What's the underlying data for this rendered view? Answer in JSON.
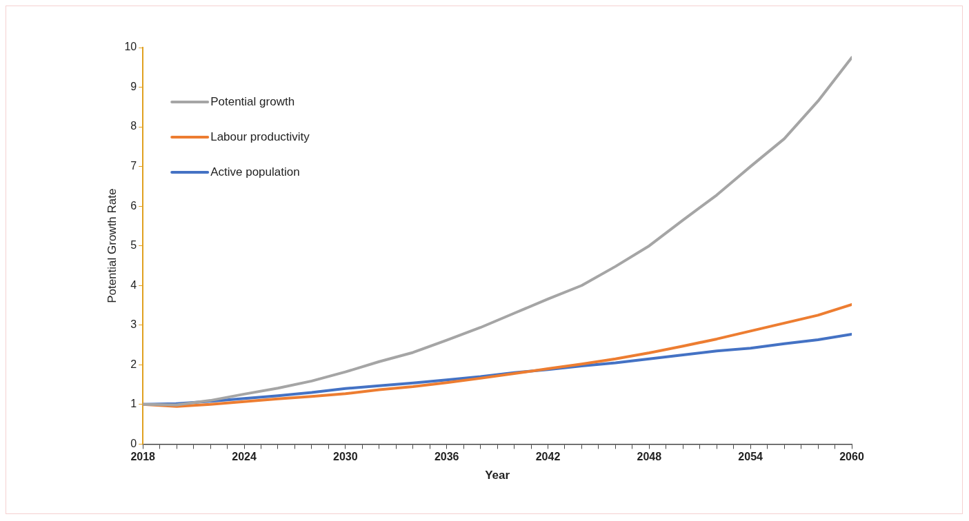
{
  "chart_data": {
    "type": "line",
    "xlabel": "Year",
    "ylabel": "Potential Growth Rate",
    "x": [
      2018,
      2020,
      2022,
      2024,
      2026,
      2028,
      2030,
      2032,
      2034,
      2036,
      2038,
      2040,
      2042,
      2044,
      2046,
      2048,
      2050,
      2052,
      2054,
      2056,
      2058,
      2060
    ],
    "series": [
      {
        "name": "Potential growth",
        "color": "#a5a5a5",
        "values": [
          1.0,
          0.99,
          1.1,
          1.26,
          1.41,
          1.59,
          1.82,
          2.08,
          2.31,
          2.62,
          2.94,
          3.3,
          3.66,
          4.0,
          4.48,
          5.0,
          5.65,
          6.28,
          7.0,
          7.7,
          8.65,
          9.75
        ]
      },
      {
        "name": "Labour productivity",
        "color": "#ed7d31",
        "values": [
          1.0,
          0.95,
          1.0,
          1.07,
          1.14,
          1.2,
          1.27,
          1.37,
          1.45,
          1.55,
          1.66,
          1.78,
          1.9,
          2.02,
          2.15,
          2.3,
          2.47,
          2.65,
          2.85,
          3.05,
          3.25,
          3.52
        ]
      },
      {
        "name": "Active population",
        "color": "#4472c4",
        "values": [
          1.0,
          1.02,
          1.08,
          1.15,
          1.22,
          1.3,
          1.4,
          1.47,
          1.54,
          1.62,
          1.7,
          1.8,
          1.88,
          1.97,
          2.05,
          2.15,
          2.25,
          2.35,
          2.42,
          2.53,
          2.63,
          2.77
        ]
      }
    ],
    "xlim": [
      2018,
      2060
    ],
    "xticks": [
      2018,
      {
        "value": 2019,
        "label": null
      },
      {
        "value": 2020,
        "label": null
      },
      {
        "value": 2021,
        "label": null
      },
      {
        "value": 2022,
        "label": null
      },
      {
        "value": 2023,
        "label": null
      },
      2024,
      {
        "value": 2025,
        "label": null
      },
      {
        "value": 2026,
        "label": null
      },
      {
        "value": 2027,
        "label": null
      },
      {
        "value": 2028,
        "label": null
      },
      {
        "value": 2029,
        "label": null
      },
      2030,
      {
        "value": 2031,
        "label": null
      },
      {
        "value": 2032,
        "label": null
      },
      {
        "value": 2033,
        "label": null
      },
      {
        "value": 2034,
        "label": null
      },
      {
        "value": 2035,
        "label": null
      },
      2036,
      {
        "value": 2037,
        "label": null
      },
      {
        "value": 2038,
        "label": null
      },
      {
        "value": 2039,
        "label": null
      },
      {
        "value": 2040,
        "label": null
      },
      {
        "value": 2041,
        "label": null
      },
      2042,
      {
        "value": 2043,
        "label": null
      },
      {
        "value": 2044,
        "label": null
      },
      {
        "value": 2045,
        "label": null
      },
      {
        "value": 2046,
        "label": null
      },
      {
        "value": 2047,
        "label": null
      },
      2048,
      {
        "value": 2049,
        "label": null
      },
      {
        "value": 2050,
        "label": null
      },
      {
        "value": 2051,
        "label": null
      },
      {
        "value": 2052,
        "label": null
      },
      {
        "value": 2053,
        "label": null
      },
      2054,
      {
        "value": 2055,
        "label": null
      },
      {
        "value": 2056,
        "label": null
      },
      {
        "value": 2057,
        "label": null
      },
      {
        "value": 2058,
        "label": null
      },
      {
        "value": 2059,
        "label": null
      },
      2060
    ],
    "ylim": [
      0,
      10
    ],
    "yticks": [
      0,
      1,
      2,
      3,
      4,
      5,
      6,
      7,
      8,
      9,
      10
    ],
    "grid": false,
    "legend": "top left",
    "marker": "none",
    "line_style": "solid"
  }
}
